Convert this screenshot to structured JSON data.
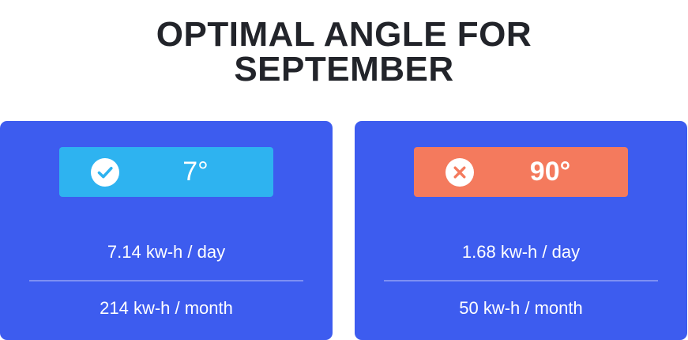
{
  "heading": {
    "line1": "OPTIMAL ANGLE FOR",
    "line2": "SEPTEMBER"
  },
  "cards": [
    {
      "status": "optimal",
      "icon": "check-circle-icon",
      "angle": "7°",
      "badge_color": "#2eb3f0",
      "per_day": "7.14 kw-h / day",
      "per_month": "214 kw-h / month"
    },
    {
      "status": "not-optimal",
      "icon": "x-circle-icon",
      "angle": "90°",
      "badge_color": "#f47a5d",
      "per_day": "1.68 kw-h / day",
      "per_month": "50 kw-h / month"
    }
  ],
  "colors": {
    "card_background": "#3d5cef",
    "title_text": "#22242a"
  }
}
